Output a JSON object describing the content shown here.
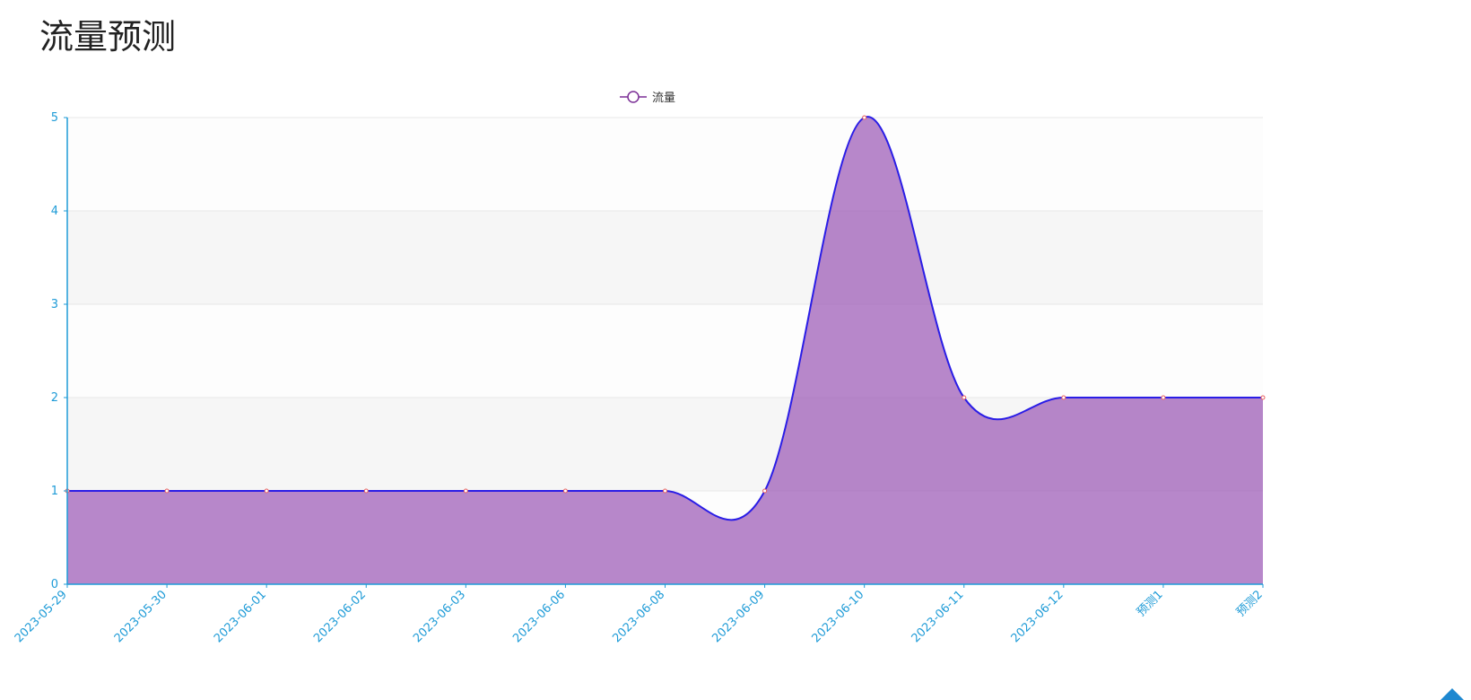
{
  "page": {
    "title": "流量预测"
  },
  "colors": {
    "line": "#2a1de6",
    "fill": "#9b59b6",
    "axis": "#1e9bd7",
    "grid": "#e8e8e8",
    "band_light": "#fdfdfd",
    "band_dark": "#f6f6f6",
    "point": "#e85f5f",
    "legend_icon": "#7b2f96",
    "back_to_top": "#1e88d0"
  },
  "chart_data": {
    "type": "area",
    "title": "",
    "xlabel": "",
    "ylabel": "",
    "categories": [
      "2023-05-29",
      "2023-05-30",
      "2023-06-01",
      "2023-06-02",
      "2023-06-03",
      "2023-06-06",
      "2023-06-08",
      "2023-06-09",
      "2023-06-10",
      "2023-06-11",
      "2023-06-12",
      "预测1",
      "预测2"
    ],
    "series": [
      {
        "name": "流量",
        "values": [
          1,
          1,
          1,
          1,
          1,
          1,
          1,
          1,
          5,
          2,
          2,
          2,
          2
        ],
        "smooth": true
      }
    ],
    "ylim": [
      0,
      5
    ],
    "yticks": [
      0,
      1,
      2,
      3,
      4,
      5
    ],
    "grid": true,
    "legend_position": "top-center",
    "x_label_rotation_deg": -45
  },
  "ui": {
    "back_to_top_icon": "caret-up-icon"
  }
}
